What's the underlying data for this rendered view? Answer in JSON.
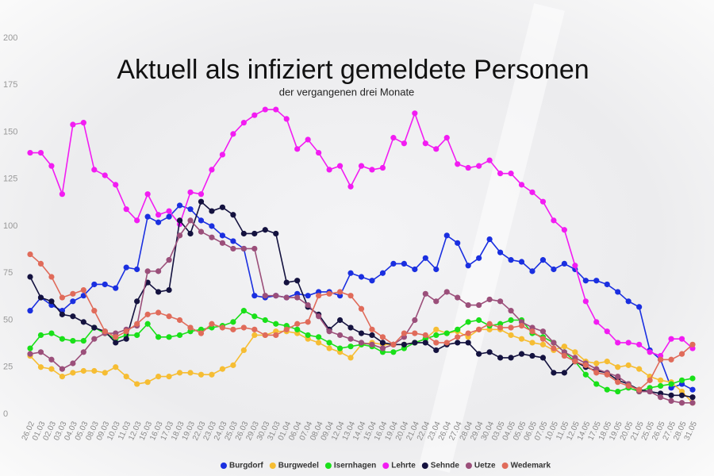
{
  "chart_data": {
    "type": "line",
    "title": "Aktuell als infiziert gemeldete Personen",
    "subtitle": "der vergangenen drei Monate",
    "categories": [
      "26.02",
      "01.03",
      "02.03",
      "03.03",
      "04.03",
      "05.03",
      "08.03",
      "09.03",
      "10.03",
      "11.03",
      "12.03",
      "15.03",
      "16.03",
      "17.03",
      "18.03",
      "19.03",
      "22.03",
      "23.03",
      "24.03",
      "25.03",
      "26.03",
      "29.03",
      "30.03",
      "31.03",
      "01.04",
      "06.04",
      "07.04",
      "08.04",
      "09.04",
      "12.04",
      "13.04",
      "14.04",
      "15.04",
      "16.04",
      "19.04",
      "20.04",
      "21.04",
      "22.04",
      "23.04",
      "26.04",
      "27.04",
      "28.04",
      "29.04",
      "30.04",
      "03.05",
      "04.05",
      "05.05",
      "06.05",
      "07.05",
      "10.05",
      "11.05",
      "12.05",
      "14.05",
      "17.05",
      "18.05",
      "19.05",
      "20.05",
      "21.05",
      "25.05",
      "26.05",
      "27.05",
      "28.05",
      "31.05"
    ],
    "series": [
      {
        "name": "Burgdorf",
        "color": "#1a2fe0",
        "values": [
          55,
          62,
          58,
          55,
          60,
          63,
          69,
          69,
          67,
          78,
          77,
          105,
          102,
          105,
          111,
          109,
          103,
          100,
          95,
          92,
          88,
          63,
          62,
          63,
          62,
          64,
          63,
          65,
          65,
          63,
          75,
          73,
          71,
          75,
          80,
          80,
          77,
          83,
          77,
          95,
          91,
          79,
          83,
          93,
          86,
          82,
          81,
          76,
          82,
          77,
          80,
          77,
          71,
          71,
          69,
          65,
          60,
          57,
          34,
          29,
          14,
          16,
          13
        ]
      },
      {
        "name": "Burgwedel",
        "color": "#f6bd33",
        "values": [
          31,
          25,
          24,
          20,
          22,
          23,
          23,
          22,
          25,
          20,
          16,
          17,
          20,
          20,
          22,
          22,
          21,
          21,
          24,
          26,
          34,
          42,
          42,
          44,
          44,
          43,
          40,
          38,
          35,
          33,
          30,
          37,
          38,
          37,
          37,
          37,
          38,
          40,
          45,
          43,
          44,
          41,
          45,
          45,
          45,
          42,
          40,
          38,
          37,
          34,
          36,
          33,
          28,
          27,
          28,
          25,
          26,
          24,
          20,
          18,
          17,
          12,
          6
        ]
      },
      {
        "name": "Isernhagen",
        "color": "#19e019",
        "values": [
          35,
          42,
          43,
          40,
          39,
          39,
          46,
          43,
          40,
          42,
          42,
          48,
          41,
          41,
          42,
          44,
          45,
          46,
          47,
          49,
          55,
          52,
          50,
          48,
          47,
          45,
          42,
          41,
          38,
          35,
          36,
          37,
          36,
          33,
          33,
          35,
          38,
          40,
          42,
          43,
          45,
          49,
          50,
          47,
          48,
          50,
          50,
          43,
          41,
          38,
          33,
          28,
          21,
          16,
          13,
          12,
          14,
          12,
          14,
          15,
          16,
          18,
          19
        ]
      },
      {
        "name": "Lehrte",
        "color": "#f21cf2",
        "values": [
          139,
          139,
          132,
          117,
          154,
          155,
          130,
          127,
          122,
          109,
          103,
          117,
          106,
          108,
          101,
          118,
          117,
          130,
          138,
          149,
          155,
          159,
          162,
          162,
          157,
          141,
          146,
          139,
          130,
          132,
          121,
          132,
          130,
          131,
          147,
          144,
          160,
          144,
          141,
          147,
          133,
          131,
          132,
          135,
          128,
          128,
          122,
          118,
          113,
          103,
          98,
          79,
          60,
          49,
          44,
          38,
          38,
          37,
          33,
          31,
          40,
          40,
          35
        ]
      },
      {
        "name": "Sehnde",
        "color": "#14123f",
        "values": [
          73,
          62,
          60,
          53,
          52,
          49,
          46,
          44,
          38,
          40,
          60,
          70,
          65,
          66,
          103,
          96,
          113,
          108,
          110,
          106,
          96,
          96,
          98,
          96,
          70,
          71,
          57,
          53,
          45,
          50,
          46,
          43,
          42,
          38,
          37,
          37,
          38,
          38,
          34,
          37,
          38,
          38,
          32,
          33,
          30,
          30,
          32,
          31,
          30,
          22,
          22,
          28,
          25,
          23,
          22,
          18,
          16,
          13,
          12,
          11,
          10,
          10,
          9
        ]
      },
      {
        "name": "Uetze",
        "color": "#9b4f7a",
        "values": [
          32,
          33,
          29,
          24,
          27,
          33,
          40,
          43,
          43,
          45,
          47,
          76,
          76,
          82,
          95,
          103,
          97,
          94,
          91,
          88,
          88,
          88,
          63,
          63,
          62,
          62,
          58,
          52,
          44,
          42,
          40,
          38,
          37,
          35,
          37,
          41,
          50,
          64,
          60,
          65,
          62,
          58,
          58,
          61,
          60,
          55,
          49,
          46,
          44,
          38,
          33,
          30,
          27,
          24,
          22,
          20,
          16,
          12,
          12,
          9,
          7,
          6,
          6
        ]
      },
      {
        "name": "Wedemark",
        "color": "#e06b5a",
        "values": [
          85,
          80,
          73,
          62,
          64,
          66,
          55,
          44,
          41,
          44,
          48,
          53,
          54,
          52,
          50,
          46,
          43,
          48,
          46,
          45,
          46,
          45,
          42,
          42,
          45,
          48,
          49,
          63,
          64,
          65,
          63,
          56,
          45,
          41,
          37,
          43,
          43,
          42,
          38,
          38,
          41,
          43,
          45,
          48,
          46,
          46,
          47,
          44,
          40,
          35,
          31,
          28,
          26,
          22,
          21,
          17,
          15,
          13,
          18,
          29,
          29,
          32,
          37
        ]
      }
    ],
    "ylim": [
      0,
      200
    ],
    "yticks": [
      0,
      25,
      50,
      75,
      100,
      125,
      150,
      175,
      200
    ],
    "grid": false,
    "legend": "bottom"
  }
}
